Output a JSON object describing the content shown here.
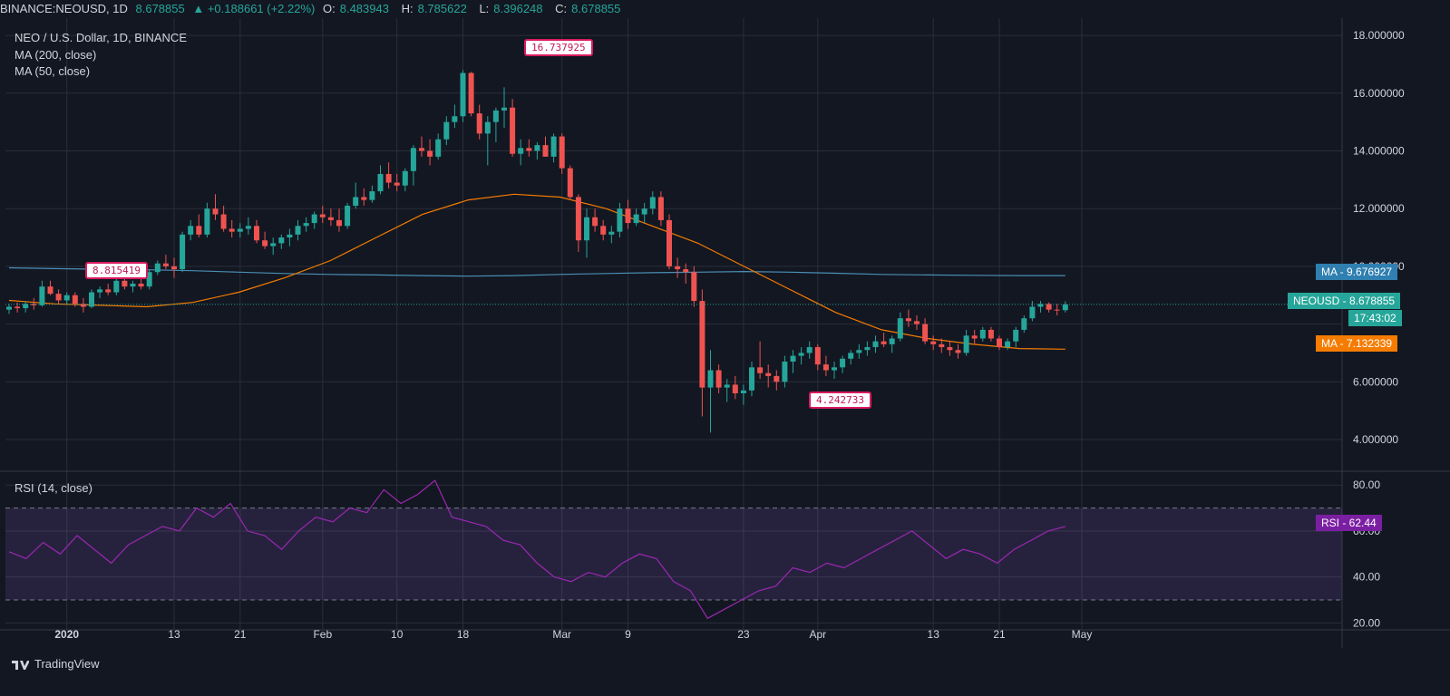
{
  "header": {
    "symbol": "BINANCE:NEOUSD, 1D",
    "last": "8.678855",
    "change": "▲ +0.188661 (+2.22%)",
    "open_label": "O:",
    "open": "8.483943",
    "high_label": "H:",
    "high": "8.785622",
    "low_label": "L:",
    "low": "8.396248",
    "close_label": "C:",
    "close": "8.678855"
  },
  "legend": {
    "title": "NEO / U.S. Dollar, 1D, BINANCE",
    "ma200": "MA (200, close)",
    "ma50": "MA (50, close)",
    "rsi": "RSI (14, close)"
  },
  "tags": {
    "ma200": "MA - 9.676927",
    "price": "NEOUSD - 8.678855",
    "countdown": "17:43:02",
    "ma50": "MA - 7.132339",
    "rsi": "RSI - 62.44"
  },
  "callouts": {
    "start": "8.815419",
    "high": "16.737925",
    "low": "4.242733"
  },
  "footer": {
    "brand": "TradingView"
  },
  "colors": {
    "background": "#131722",
    "grid": "#2a2e39",
    "up": "#26a69a",
    "down": "#ef5350",
    "ma200": "#4a8fb5",
    "ma50": "#f57c00",
    "rsi_line": "#9c27b0",
    "rsi_tag": "#7b1fa2",
    "callout_border": "#d81b60"
  },
  "chart_data": {
    "type": "candlestick",
    "title": "NEO / U.S. Dollar, 1D, BINANCE",
    "price_axis": {
      "range": [
        2.9,
        18.6
      ],
      "ticks": [
        "18.000000",
        "16.000000",
        "14.000000",
        "12.000000",
        "10.000000",
        "6.000000",
        "4.000000"
      ],
      "tick_values": [
        18,
        16,
        14,
        12,
        10,
        6,
        4
      ]
    },
    "rsi_axis": {
      "range": [
        17,
        86
      ],
      "ticks": [
        "80.00",
        "60.00",
        "40.00",
        "20.00"
      ],
      "tick_values": [
        80,
        60,
        40,
        20
      ],
      "bands": [
        70,
        30
      ]
    },
    "x_axis": {
      "labels": [
        "2020",
        "13",
        "21",
        "Feb",
        "10",
        "18",
        "Mar",
        "9",
        "23",
        "Apr",
        "13",
        "21",
        "May"
      ],
      "label_days": [
        7,
        20,
        28,
        38,
        47,
        55,
        67,
        75,
        89,
        98,
        112,
        120,
        130
      ]
    },
    "ohlc": [
      [
        8.5,
        8.7,
        8.35,
        8.6
      ],
      [
        8.6,
        8.75,
        8.4,
        8.55
      ],
      [
        8.55,
        8.8,
        8.4,
        8.7
      ],
      [
        8.7,
        8.9,
        8.5,
        8.65
      ],
      [
        8.65,
        9.5,
        8.6,
        9.3
      ],
      [
        9.3,
        9.5,
        9.0,
        9.05
      ],
      [
        9.05,
        9.2,
        8.7,
        8.82
      ],
      [
        8.82,
        9.1,
        8.7,
        9.0
      ],
      [
        9.0,
        9.1,
        8.6,
        8.7
      ],
      [
        8.7,
        8.9,
        8.4,
        8.6
      ],
      [
        8.6,
        9.2,
        8.55,
        9.1
      ],
      [
        9.1,
        9.3,
        8.9,
        9.2
      ],
      [
        9.2,
        9.4,
        9.0,
        9.1
      ],
      [
        9.1,
        9.6,
        9.0,
        9.5
      ],
      [
        9.5,
        9.7,
        9.2,
        9.3
      ],
      [
        9.3,
        9.5,
        9.1,
        9.4
      ],
      [
        9.4,
        9.6,
        9.2,
        9.3
      ],
      [
        9.3,
        9.9,
        9.2,
        9.8
      ],
      [
        9.8,
        10.2,
        9.7,
        10.1
      ],
      [
        10.1,
        10.4,
        9.9,
        10.0
      ],
      [
        10.0,
        10.3,
        9.6,
        9.9
      ],
      [
        9.9,
        11.2,
        9.8,
        11.1
      ],
      [
        11.1,
        11.6,
        10.9,
        11.4
      ],
      [
        11.4,
        11.8,
        11.0,
        11.1
      ],
      [
        11.1,
        12.2,
        11.0,
        12.0
      ],
      [
        12.0,
        12.5,
        11.6,
        11.8
      ],
      [
        11.8,
        12.1,
        11.2,
        11.3
      ],
      [
        11.3,
        11.6,
        11.0,
        11.2
      ],
      [
        11.2,
        11.5,
        11.0,
        11.3
      ],
      [
        11.3,
        11.7,
        11.1,
        11.4
      ],
      [
        11.4,
        11.6,
        10.8,
        10.9
      ],
      [
        10.9,
        11.2,
        10.6,
        10.7
      ],
      [
        10.7,
        11.0,
        10.4,
        10.8
      ],
      [
        10.8,
        11.1,
        10.6,
        11.0
      ],
      [
        11.0,
        11.3,
        10.7,
        11.1
      ],
      [
        11.1,
        11.6,
        10.9,
        11.4
      ],
      [
        11.4,
        11.7,
        11.2,
        11.5
      ],
      [
        11.5,
        11.9,
        11.3,
        11.8
      ],
      [
        11.8,
        12.1,
        11.5,
        11.7
      ],
      [
        11.7,
        12.0,
        11.4,
        11.6
      ],
      [
        11.6,
        12.0,
        11.2,
        11.4
      ],
      [
        11.4,
        12.2,
        11.3,
        12.1
      ],
      [
        12.1,
        12.9,
        12.0,
        12.4
      ],
      [
        12.4,
        12.7,
        12.1,
        12.3
      ],
      [
        12.3,
        12.8,
        12.2,
        12.6
      ],
      [
        12.6,
        13.5,
        12.5,
        13.2
      ],
      [
        13.2,
        13.6,
        12.7,
        12.9
      ],
      [
        12.9,
        13.2,
        12.6,
        12.8
      ],
      [
        12.8,
        13.4,
        12.6,
        13.3
      ],
      [
        13.3,
        14.2,
        12.8,
        14.1
      ],
      [
        14.1,
        14.5,
        13.8,
        14.0
      ],
      [
        14.0,
        14.4,
        13.5,
        13.8
      ],
      [
        13.8,
        14.6,
        13.7,
        14.4
      ],
      [
        14.4,
        15.2,
        14.2,
        15.0
      ],
      [
        15.0,
        15.6,
        14.8,
        15.2
      ],
      [
        15.2,
        16.8,
        15.0,
        16.7
      ],
      [
        16.7,
        16.74,
        15.2,
        15.3
      ],
      [
        15.3,
        15.6,
        14.4,
        14.6
      ],
      [
        14.6,
        15.2,
        13.5,
        15.0
      ],
      [
        15.0,
        15.5,
        14.3,
        15.4
      ],
      [
        15.4,
        16.2,
        14.8,
        15.5
      ],
      [
        15.5,
        15.8,
        13.8,
        13.9
      ],
      [
        13.9,
        14.4,
        13.5,
        14.1
      ],
      [
        14.1,
        14.4,
        13.8,
        14.0
      ],
      [
        14.0,
        14.3,
        13.7,
        14.2
      ],
      [
        14.2,
        14.5,
        13.8,
        13.8
      ],
      [
        13.8,
        14.6,
        13.6,
        14.5
      ],
      [
        14.5,
        14.6,
        13.2,
        13.4
      ],
      [
        13.4,
        13.5,
        12.3,
        12.4
      ],
      [
        12.4,
        12.5,
        10.5,
        10.9
      ],
      [
        10.9,
        12.0,
        10.3,
        11.7
      ],
      [
        11.7,
        12.0,
        11.2,
        11.4
      ],
      [
        11.4,
        11.6,
        10.9,
        11.1
      ],
      [
        11.1,
        11.4,
        10.8,
        11.2
      ],
      [
        11.2,
        12.2,
        11.0,
        12.0
      ],
      [
        12.0,
        12.3,
        11.3,
        11.5
      ],
      [
        11.5,
        12.0,
        11.4,
        11.8
      ],
      [
        11.8,
        12.2,
        11.5,
        12.0
      ],
      [
        12.0,
        12.6,
        11.8,
        12.4
      ],
      [
        12.4,
        12.6,
        11.4,
        11.6
      ],
      [
        11.6,
        11.8,
        9.9,
        10.0
      ],
      [
        10.0,
        10.3,
        9.6,
        9.9
      ],
      [
        9.9,
        10.1,
        9.4,
        9.8
      ],
      [
        9.8,
        10.0,
        8.6,
        8.8
      ],
      [
        8.8,
        9.2,
        4.8,
        5.8
      ],
      [
        5.8,
        7.1,
        4.24,
        6.4
      ],
      [
        6.4,
        6.6,
        5.6,
        5.8
      ],
      [
        5.8,
        6.1,
        5.3,
        5.9
      ],
      [
        5.9,
        6.2,
        5.4,
        5.6
      ],
      [
        5.6,
        5.9,
        5.2,
        5.7
      ],
      [
        5.7,
        6.7,
        5.5,
        6.5
      ],
      [
        6.5,
        7.4,
        6.1,
        6.3
      ],
      [
        6.3,
        6.6,
        5.8,
        6.2
      ],
      [
        6.2,
        6.4,
        5.7,
        6.0
      ],
      [
        6.0,
        6.9,
        5.8,
        6.7
      ],
      [
        6.7,
        7.1,
        6.3,
        6.9
      ],
      [
        6.9,
        7.2,
        6.6,
        7.0
      ],
      [
        7.0,
        7.4,
        6.8,
        7.2
      ],
      [
        7.2,
        7.3,
        6.4,
        6.6
      ],
      [
        6.6,
        6.9,
        6.2,
        6.4
      ],
      [
        6.4,
        6.7,
        6.1,
        6.5
      ],
      [
        6.5,
        6.9,
        6.3,
        6.8
      ],
      [
        6.8,
        7.1,
        6.6,
        7.0
      ],
      [
        7.0,
        7.3,
        6.8,
        7.1
      ],
      [
        7.1,
        7.4,
        6.9,
        7.2
      ],
      [
        7.2,
        7.6,
        7.0,
        7.4
      ],
      [
        7.4,
        7.7,
        7.2,
        7.3
      ],
      [
        7.3,
        7.6,
        7.0,
        7.5
      ],
      [
        7.5,
        8.4,
        7.4,
        8.2
      ],
      [
        8.2,
        8.5,
        7.9,
        8.1
      ],
      [
        8.1,
        8.3,
        7.8,
        8.0
      ],
      [
        8.0,
        8.2,
        7.3,
        7.4
      ],
      [
        7.4,
        7.6,
        7.1,
        7.3
      ],
      [
        7.3,
        7.5,
        7.0,
        7.2
      ],
      [
        7.2,
        7.4,
        6.9,
        7.1
      ],
      [
        7.1,
        7.3,
        6.8,
        7.0
      ],
      [
        7.0,
        7.8,
        6.9,
        7.6
      ],
      [
        7.6,
        7.8,
        7.3,
        7.5
      ],
      [
        7.5,
        7.9,
        7.4,
        7.8
      ],
      [
        7.8,
        7.9,
        7.4,
        7.5
      ],
      [
        7.5,
        7.6,
        7.1,
        7.2
      ],
      [
        7.2,
        7.5,
        7.1,
        7.4
      ],
      [
        7.4,
        7.9,
        7.2,
        7.8
      ],
      [
        7.8,
        8.3,
        7.7,
        8.2
      ],
      [
        8.2,
        8.8,
        8.1,
        8.6
      ],
      [
        8.6,
        8.8,
        8.4,
        8.7
      ],
      [
        8.7,
        8.75,
        8.4,
        8.5
      ],
      [
        8.5,
        8.7,
        8.3,
        8.48
      ],
      [
        8.48,
        8.79,
        8.4,
        8.68
      ]
    ],
    "ma200": [
      9.95,
      9.92,
      9.9,
      9.88,
      9.85,
      9.8,
      9.75,
      9.72,
      9.7,
      9.68,
      9.66,
      9.68,
      9.72,
      9.75,
      9.78,
      9.8,
      9.82,
      9.8,
      9.76,
      9.72,
      9.7,
      9.69,
      9.68,
      9.68
    ],
    "ma50": [
      8.82,
      8.7,
      8.65,
      8.6,
      8.75,
      9.1,
      9.6,
      10.2,
      11.0,
      11.8,
      12.3,
      12.5,
      12.4,
      12.0,
      11.4,
      10.8,
      10.0,
      9.2,
      8.4,
      7.8,
      7.5,
      7.3,
      7.15,
      7.13
    ],
    "rsi": [
      51,
      48,
      55,
      50,
      58,
      52,
      46,
      54,
      58,
      62,
      60,
      70,
      66,
      72,
      60,
      58,
      52,
      60,
      66,
      64,
      70,
      68,
      78,
      72,
      76,
      82,
      66,
      64,
      62,
      56,
      54,
      46,
      40,
      38,
      42,
      40,
      46,
      50,
      48,
      38,
      34,
      22,
      26,
      30,
      34,
      36,
      44,
      42,
      46,
      44,
      48,
      52,
      56,
      60,
      54,
      48,
      52,
      50,
      46,
      52,
      56,
      60,
      62
    ]
  }
}
